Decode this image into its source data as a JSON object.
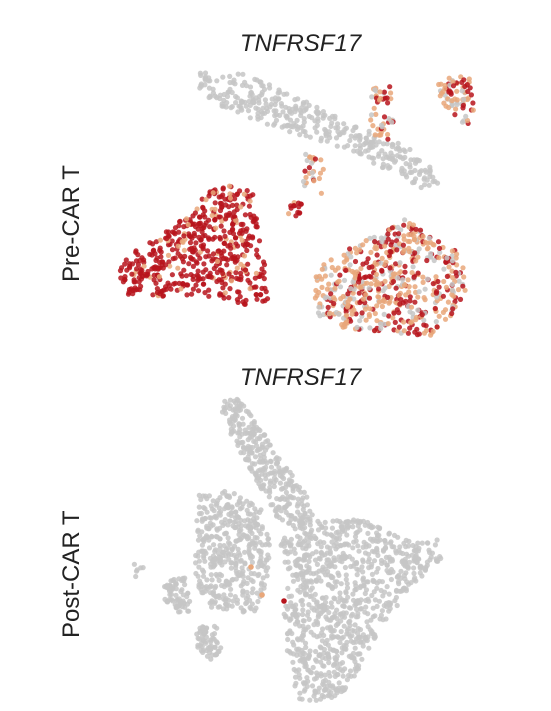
{
  "chart_data": [
    {
      "type": "scatter",
      "title": "TNFRSF17",
      "row_label": "Pre-CAR T",
      "colors": {
        "low": "#c6c6c6",
        "mid": "#e9a77a",
        "high": "#b7141c"
      },
      "clusters": [
        {
          "name": "top-band",
          "expression": "low",
          "n": 360,
          "seed": 11,
          "poly": [
            [
              195,
              72
            ],
            [
              235,
              70
            ],
            [
              280,
              88
            ],
            [
              320,
              108
            ],
            [
              360,
              128
            ],
            [
              395,
              140
            ],
            [
              430,
              160
            ],
            [
              440,
              185
            ],
            [
              420,
              188
            ],
            [
              385,
              170
            ],
            [
              345,
              150
            ],
            [
              300,
              135
            ],
            [
              260,
              122
            ],
            [
              225,
              108
            ],
            [
              200,
              92
            ]
          ]
        },
        {
          "name": "top-right-arm",
          "expression": "mix",
          "n": 70,
          "seed": 12,
          "poly": [
            [
              440,
              78
            ],
            [
              470,
              76
            ],
            [
              474,
              110
            ],
            [
              468,
              128
            ],
            [
              450,
              112
            ],
            [
              436,
              95
            ]
          ]
        },
        {
          "name": "top-mid-arm",
          "expression": "mix",
          "n": 45,
          "seed": 13,
          "poly": [
            [
              372,
              88
            ],
            [
              390,
              86
            ],
            [
              394,
              130
            ],
            [
              384,
              148
            ],
            [
              370,
              130
            ]
          ]
        },
        {
          "name": "dangling",
          "expression": "mix",
          "n": 25,
          "seed": 14,
          "poly": [
            [
              300,
              150
            ],
            [
              325,
              150
            ],
            [
              322,
              200
            ],
            [
              305,
              200
            ]
          ]
        },
        {
          "name": "left-high",
          "expression": "high",
          "n": 520,
          "seed": 21,
          "poly": [
            [
              125,
              258
            ],
            [
              165,
              232
            ],
            [
              192,
              212
            ],
            [
              208,
              190
            ],
            [
              238,
              183
            ],
            [
              262,
              200
            ],
            [
              258,
              230
            ],
            [
              265,
              260
            ],
            [
              268,
              300
            ],
            [
              248,
              305
            ],
            [
              200,
              295
            ],
            [
              160,
              298
            ],
            [
              125,
              295
            ],
            [
              118,
              275
            ]
          ]
        },
        {
          "name": "small-high",
          "expression": "high",
          "n": 14,
          "seed": 22,
          "poly": [
            [
              287,
              203
            ],
            [
              302,
              202
            ],
            [
              302,
              216
            ],
            [
              288,
              216
            ]
          ]
        },
        {
          "name": "right-mixed",
          "expression": "mix",
          "n": 560,
          "seed": 31,
          "poly": [
            [
              318,
              268
            ],
            [
              350,
              248
            ],
            [
              385,
              230
            ],
            [
              405,
              218
            ],
            [
              432,
              238
            ],
            [
              462,
              252
            ],
            [
              466,
              292
            ],
            [
              452,
              320
            ],
            [
              428,
              338
            ],
            [
              385,
              332
            ],
            [
              345,
              328
            ],
            [
              318,
              318
            ],
            [
              313,
              292
            ]
          ]
        }
      ]
    },
    {
      "type": "scatter",
      "title": "TNFRSF17",
      "row_label": "Post-CAR T",
      "colors": {
        "low": "#c6c6c6",
        "mid": "#e9a77a",
        "high": "#b7141c"
      },
      "clusters": [
        {
          "name": "top-stem",
          "expression": "low",
          "n": 300,
          "seed": 41,
          "poly": [
            [
              218,
              398
            ],
            [
              238,
              398
            ],
            [
              262,
              430
            ],
            [
              285,
              465
            ],
            [
              305,
              492
            ],
            [
              315,
              520
            ],
            [
              300,
              532
            ],
            [
              278,
              520
            ],
            [
              262,
              490
            ],
            [
              242,
              455
            ],
            [
              226,
              425
            ]
          ]
        },
        {
          "name": "left-mass",
          "expression": "low",
          "n": 420,
          "seed": 42,
          "poly": [
            [
              198,
              495
            ],
            [
              228,
              490
            ],
            [
              262,
              508
            ],
            [
              270,
              545
            ],
            [
              268,
              578
            ],
            [
              258,
              612
            ],
            [
              238,
              612
            ],
            [
              212,
              608
            ],
            [
              196,
              585
            ],
            [
              194,
              545
            ]
          ]
        },
        {
          "name": "right-triangle",
          "expression": "low",
          "n": 900,
          "seed": 43,
          "poly": [
            [
              280,
              540
            ],
            [
              320,
              520
            ],
            [
              362,
              520
            ],
            [
              402,
              538
            ],
            [
              438,
              540
            ],
            [
              444,
              556
            ],
            [
              418,
              580
            ],
            [
              392,
              612
            ],
            [
              368,
              650
            ],
            [
              348,
              690
            ],
            [
              322,
              702
            ],
            [
              298,
              700
            ],
            [
              288,
              660
            ],
            [
              284,
              615
            ],
            [
              288,
              585
            ]
          ]
        },
        {
          "name": "left-arm",
          "expression": "low",
          "n": 70,
          "seed": 44,
          "poly": [
            [
              162,
              580
            ],
            [
              185,
              576
            ],
            [
              192,
              612
            ],
            [
              178,
              612
            ],
            [
              164,
              600
            ]
          ]
        },
        {
          "name": "bottom-left-arm",
          "expression": "low",
          "n": 60,
          "seed": 45,
          "poly": [
            [
              196,
              628
            ],
            [
              216,
              622
            ],
            [
              222,
              652
            ],
            [
              210,
              660
            ],
            [
              198,
              650
            ]
          ]
        },
        {
          "name": "few-left",
          "expression": "low",
          "n": 6,
          "seed": 46,
          "poly": [
            [
              134,
              564
            ],
            [
              144,
              564
            ],
            [
              144,
              580
            ],
            [
              134,
              580
            ]
          ]
        }
      ],
      "highlights": [
        {
          "x": 251,
          "y": 567,
          "expression": "mid"
        },
        {
          "x": 262,
          "y": 595,
          "expression": "mid"
        },
        {
          "x": 284,
          "y": 601,
          "expression": "high"
        }
      ]
    }
  ]
}
